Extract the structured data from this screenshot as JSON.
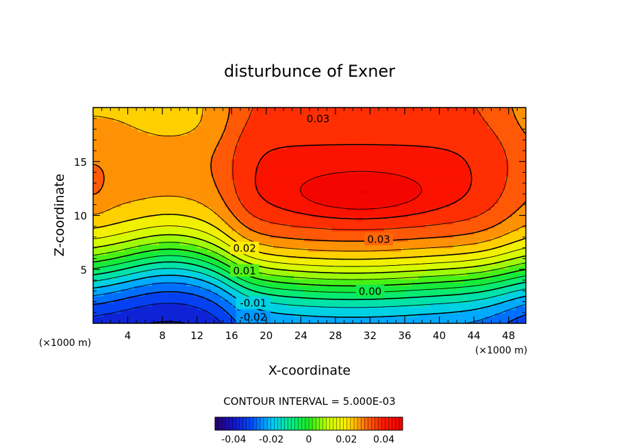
{
  "chart_data": {
    "type": "contour",
    "title": "disturbunce of Exner",
    "xlabel": "X-coordinate",
    "ylabel": "Z-coordinate",
    "x_unit": "(×1000 m)",
    "z_unit": "(×1000 m)",
    "xlim": [
      0,
      50
    ],
    "ylim": [
      0,
      20
    ],
    "x_ticks": [
      4,
      8,
      12,
      16,
      20,
      24,
      28,
      32,
      36,
      40,
      44,
      48
    ],
    "y_ticks": [
      5,
      10,
      15
    ],
    "contour_interval_label": "CONTOUR INTERVAL = 5.000E-03",
    "contour_interval": 0.005,
    "contour_labels": [
      {
        "text": "0.03",
        "x": 26,
        "z": 19.0
      },
      {
        "text": "0.03",
        "x": 33,
        "z": 7.8
      },
      {
        "text": "0.02",
        "x": 17.5,
        "z": 7.0
      },
      {
        "text": "0.01",
        "x": 17.5,
        "z": 4.9
      },
      {
        "text": "0.00",
        "x": 32,
        "z": 3.0
      },
      {
        "text": "-0.01",
        "x": 18.5,
        "z": 1.9
      },
      {
        "text": "-0.02",
        "x": 18.5,
        "z": 0.6
      }
    ],
    "field_range": [
      -0.045,
      0.045
    ],
    "field_maximum": {
      "value": 0.04,
      "x": 31,
      "z": 12
    },
    "colorbar": {
      "range": [
        -0.05,
        0.05
      ],
      "ticks": [
        {
          "value": -0.04,
          "label": "-0.04"
        },
        {
          "value": -0.02,
          "label": "-0.02"
        },
        {
          "value": 0,
          "label": "0"
        },
        {
          "value": 0.02,
          "label": "0.02"
        },
        {
          "value": 0.04,
          "label": "0.04"
        }
      ]
    }
  }
}
